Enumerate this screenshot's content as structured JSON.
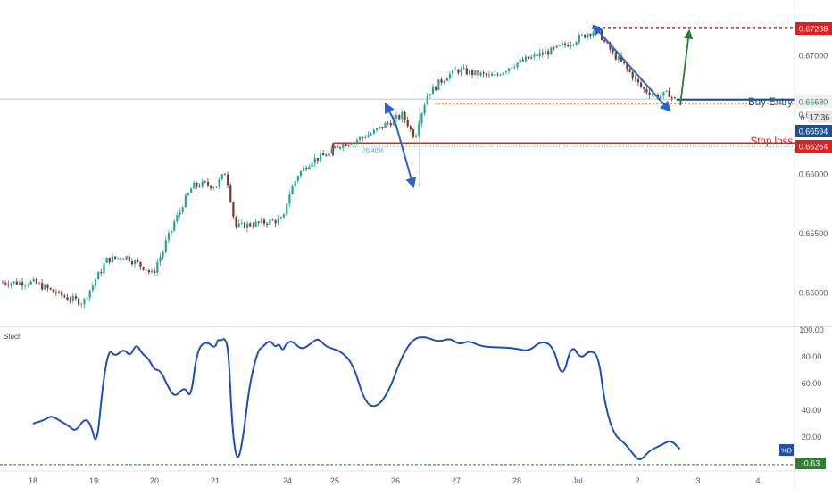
{
  "colors": {
    "up": "#26a69a",
    "down": "#7a3a2a",
    "stoch": "#1e4fb5",
    "entry": "#1a4b8c",
    "stop": "#e02020",
    "target": "#e02020",
    "arrow_blue": "#2962c9",
    "arrow_green": "#2e7d32",
    "axis_text": "#555555",
    "divider": "#d6d6d6",
    "band": "#e8e8e8",
    "current_bg": "#1f4f8f",
    "stoch_badge": "#1e4fb5",
    "stoch_value_bg": "#2e7d32"
  },
  "labels": {
    "buy_entry": "Buy Entry",
    "stop_loss": "Stop loss",
    "fib": "76.40%",
    "zero_mark": "0"
  },
  "price_labels": {
    "target": "0.67238",
    "entry": "0.66630",
    "countdown": "17:36",
    "current": "0.66594",
    "stop": "0.66264"
  },
  "stoch_labels": {
    "title": "Stoch",
    "badge": "%D",
    "value": "-0.63"
  },
  "chart_data": [
    {
      "type": "line",
      "subtype": "candlestick",
      "x_ticks": [
        "18",
        "19",
        "20",
        "21",
        "24",
        "25",
        "26",
        "27",
        "28",
        "Jul",
        "2",
        "3",
        "4"
      ],
      "y_ticks": [
        "0.67000",
        "0.66500",
        "0.66000",
        "0.65500",
        "0.65000"
      ],
      "ylim": [
        0.6472,
        0.6747
      ],
      "levels": {
        "target": 0.67238,
        "entry": 0.6663,
        "current": 0.66594,
        "stop": 0.66264,
        "fib_764": 0.66235
      },
      "series": [
        {
          "path": [
            [
              18,
              0.6509
            ],
            [
              18.5,
              0.6497
            ],
            [
              18.8,
              0.6492
            ],
            [
              19,
              0.651
            ],
            [
              19.2,
              0.6528
            ],
            [
              19.5,
              0.6531
            ],
            [
              19.8,
              0.6522
            ],
            [
              19.95,
              0.6516
            ],
            [
              20.1,
              0.6533
            ],
            [
              20.3,
              0.6558
            ],
            [
              20.6,
              0.659
            ],
            [
              20.8,
              0.6592
            ],
            [
              21,
              0.659
            ],
            [
              21.4,
              0.6603
            ],
            [
              21.8,
              0.6556
            ],
            [
              23.8,
              0.6562
            ],
            [
              23.95,
              0.6578
            ],
            [
              24.2,
              0.66
            ],
            [
              24.5,
              0.6612
            ],
            [
              24.9,
              0.6618
            ],
            [
              25.0,
              0.6624
            ],
            [
              25.3,
              0.6628
            ],
            [
              25.6,
              0.6635
            ],
            [
              25.85,
              0.6643
            ],
            [
              26.1,
              0.665
            ],
            [
              26.3,
              0.6632
            ],
            [
              26.5,
              0.6667
            ],
            [
              26.8,
              0.6682
            ],
            [
              27.0,
              0.6688
            ],
            [
              27.3,
              0.6685
            ],
            [
              27.6,
              0.6682
            ],
            [
              27.9,
              0.6692
            ],
            [
              28.3,
              0.67
            ],
            [
              28.6,
              0.6705
            ],
            [
              28.9,
              0.6712
            ],
            [
              29.2,
              0.672
            ],
            [
              29.3,
              0.6722
            ],
            [
              29.55,
              0.6703
            ],
            [
              29.8,
              0.669
            ],
            [
              30.05,
              0.6673
            ],
            [
              30.3,
              0.6666
            ],
            [
              30.5,
              0.6668
            ],
            [
              30.65,
              0.6661
            ],
            [
              30.75,
              0.6659
            ]
          ]
        }
      ]
    },
    {
      "type": "line",
      "title": "Stoch",
      "y_ticks": [
        "100.00",
        "80.00",
        "60.00",
        "40.00",
        "20.00"
      ],
      "ylim": [
        -2,
        100
      ],
      "threshold": -0.63,
      "series": [
        {
          "name": "%D",
          "points": [
            [
              18,
              30
            ],
            [
              18.2,
              33
            ],
            [
              18.3,
              36
            ],
            [
              18.45,
              32
            ],
            [
              18.6,
              28
            ],
            [
              18.7,
              24
            ],
            [
              18.85,
              34
            ],
            [
              18.95,
              30
            ],
            [
              19.05,
              12
            ],
            [
              19.15,
              60
            ],
            [
              19.25,
              86
            ],
            [
              19.35,
              80
            ],
            [
              19.5,
              86
            ],
            [
              19.6,
              80
            ],
            [
              19.7,
              90
            ],
            [
              19.8,
              82
            ],
            [
              19.9,
              79
            ],
            [
              20.0,
              70
            ],
            [
              20.1,
              70
            ],
            [
              20.25,
              55
            ],
            [
              20.35,
              50
            ],
            [
              20.5,
              58
            ],
            [
              20.6,
              48
            ],
            [
              20.7,
              85
            ],
            [
              20.85,
              92
            ],
            [
              21.0,
              86
            ],
            [
              21.1,
              93
            ],
            [
              21.25,
              92
            ],
            [
              21.4,
              94
            ],
            [
              21.55,
              86
            ],
            [
              21.7,
              30
            ],
            [
              21.85,
              6
            ],
            [
              22.0,
              4
            ],
            [
              22.2,
              25
            ],
            [
              22.4,
              55
            ],
            [
              22.6,
              73
            ],
            [
              22.8,
              85
            ],
            [
              22.95,
              87
            ],
            [
              23.1,
              90
            ],
            [
              23.3,
              92
            ],
            [
              23.5,
              87
            ],
            [
              23.65,
              90
            ],
            [
              23.8,
              84
            ],
            [
              23.95,
              90
            ],
            [
              24.1,
              92
            ],
            [
              24.3,
              85
            ],
            [
              24.5,
              90
            ],
            [
              24.65,
              94
            ],
            [
              24.8,
              88
            ],
            [
              24.95,
              86
            ],
            [
              25.1,
              84
            ],
            [
              25.3,
              75
            ],
            [
              25.5,
              45
            ],
            [
              25.7,
              42
            ],
            [
              25.9,
              55
            ],
            [
              26.1,
              80
            ],
            [
              26.3,
              94
            ],
            [
              26.5,
              95
            ],
            [
              26.7,
              91
            ],
            [
              26.9,
              94
            ],
            [
              27.05,
              89
            ],
            [
              27.2,
              92
            ],
            [
              27.4,
              88
            ],
            [
              27.6,
              87
            ],
            [
              27.8,
              87
            ],
            [
              28.0,
              86
            ],
            [
              28.2,
              84
            ],
            [
              28.4,
              92
            ],
            [
              28.6,
              88
            ],
            [
              28.75,
              62
            ],
            [
              28.9,
              90
            ],
            [
              29.05,
              78
            ],
            [
              29.2,
              85
            ],
            [
              29.35,
              81
            ],
            [
              29.45,
              46
            ],
            [
              29.6,
              22
            ],
            [
              29.8,
              15
            ],
            [
              29.95,
              6
            ],
            [
              30.05,
              2
            ],
            [
              30.2,
              10
            ],
            [
              30.4,
              14
            ],
            [
              30.55,
              18
            ],
            [
              30.7,
              11
            ]
          ]
        }
      ]
    }
  ]
}
